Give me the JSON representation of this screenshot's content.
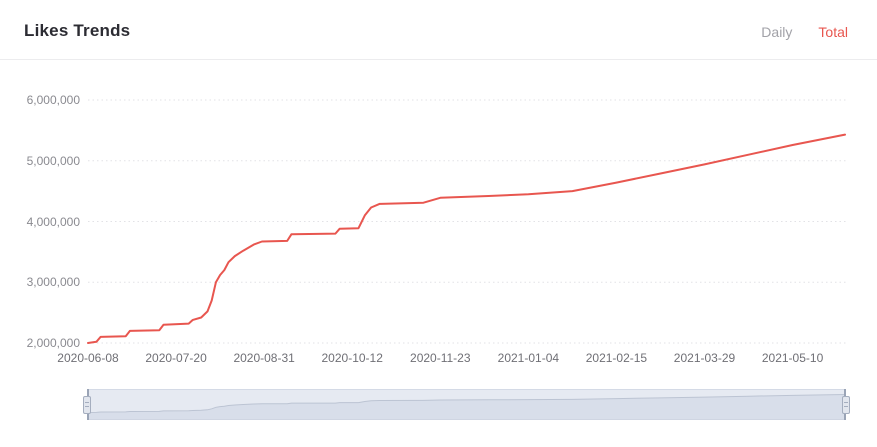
{
  "header": {
    "title": "Likes Trends",
    "tabs": [
      {
        "label": "Daily",
        "active": false
      },
      {
        "label": "Total",
        "active": true
      }
    ]
  },
  "colors": {
    "line": "#e8564f",
    "active_tab": "#e8564f",
    "inactive_tab": "#a2a2a8",
    "gridline": "#e2e2e6",
    "y_axis_label": "#8a8a90",
    "x_axis_label": "#6f6f75",
    "slider_track": "#e6eaf2",
    "slider_area_fill": "#d8deea",
    "slider_area_line": "#bcc4d3",
    "slider_handle_border": "#a5aebf"
  },
  "chart_data": {
    "type": "line",
    "title": "Likes Trends",
    "ylabel": "",
    "xlabel": "",
    "ylim": [
      2000000,
      6000000
    ],
    "x_range": [
      "2020-06-08",
      "2021-06-04"
    ],
    "grid": "horizontal-dotted",
    "legend_position": "none",
    "has_zoom_slider": true,
    "y_ticks": [
      {
        "value": 2000000,
        "label": "2,000,000"
      },
      {
        "value": 3000000,
        "label": "3,000,000"
      },
      {
        "value": 4000000,
        "label": "4,000,000"
      },
      {
        "value": 5000000,
        "label": "5,000,000"
      },
      {
        "value": 6000000,
        "label": "6,000,000"
      }
    ],
    "x_ticks": [
      "2020-06-08",
      "2020-07-20",
      "2020-08-31",
      "2020-10-12",
      "2020-11-23",
      "2021-01-04",
      "2021-02-15",
      "2021-03-29",
      "2021-05-10"
    ],
    "series": [
      {
        "name": "Total",
        "points": [
          [
            "2020-06-08",
            2000000
          ],
          [
            "2020-06-12",
            2020000
          ],
          [
            "2020-06-14",
            2100000
          ],
          [
            "2020-06-26",
            2110000
          ],
          [
            "2020-06-28",
            2200000
          ],
          [
            "2020-07-12",
            2210000
          ],
          [
            "2020-07-14",
            2300000
          ],
          [
            "2020-07-26",
            2320000
          ],
          [
            "2020-07-28",
            2380000
          ],
          [
            "2020-08-01",
            2420000
          ],
          [
            "2020-08-04",
            2520000
          ],
          [
            "2020-08-06",
            2700000
          ],
          [
            "2020-08-08",
            3000000
          ],
          [
            "2020-08-10",
            3120000
          ],
          [
            "2020-08-12",
            3200000
          ],
          [
            "2020-08-14",
            3330000
          ],
          [
            "2020-08-17",
            3430000
          ],
          [
            "2020-08-21",
            3520000
          ],
          [
            "2020-08-26",
            3620000
          ],
          [
            "2020-08-30",
            3670000
          ],
          [
            "2020-09-11",
            3680000
          ],
          [
            "2020-09-13",
            3790000
          ],
          [
            "2020-10-04",
            3800000
          ],
          [
            "2020-10-06",
            3880000
          ],
          [
            "2020-10-15",
            3890000
          ],
          [
            "2020-10-18",
            4100000
          ],
          [
            "2020-10-21",
            4230000
          ],
          [
            "2020-10-25",
            4290000
          ],
          [
            "2020-11-15",
            4310000
          ],
          [
            "2020-11-23",
            4390000
          ],
          [
            "2020-12-16",
            4420000
          ],
          [
            "2021-01-04",
            4450000
          ],
          [
            "2021-01-25",
            4500000
          ],
          [
            "2021-02-15",
            4640000
          ],
          [
            "2021-03-08",
            4790000
          ],
          [
            "2021-03-29",
            4940000
          ],
          [
            "2021-04-19",
            5100000
          ],
          [
            "2021-05-10",
            5260000
          ],
          [
            "2021-06-04",
            5430000
          ]
        ]
      }
    ]
  }
}
